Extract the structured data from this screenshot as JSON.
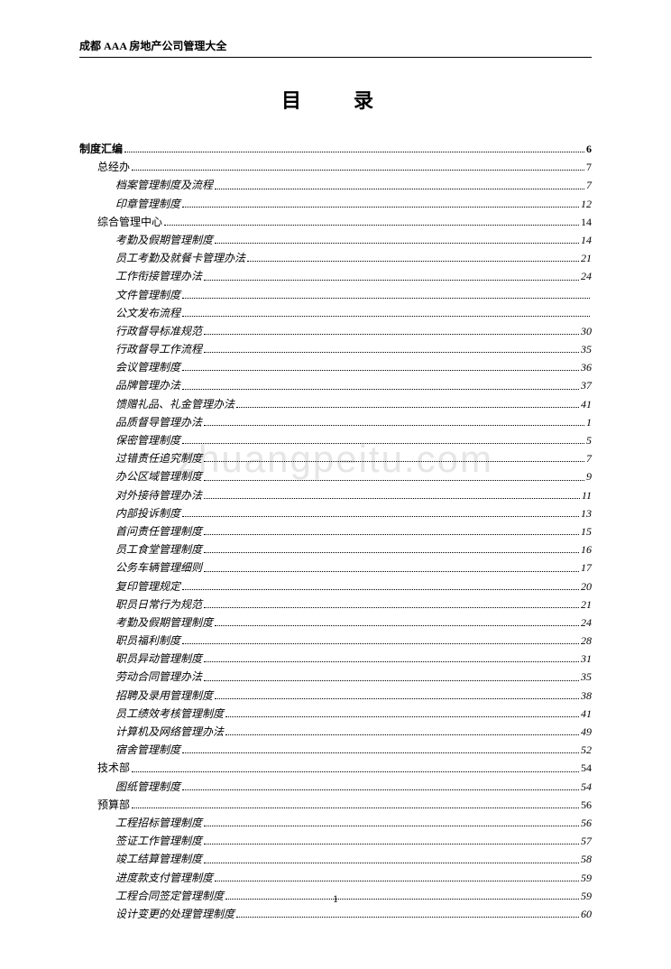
{
  "header": "成都 AAA 房地产公司管理大全",
  "title": "目　录",
  "watermark": "zhuangpeitu.com",
  "pageNumber": "1",
  "toc": [
    {
      "level": 0,
      "label": "制度汇编",
      "page": "6"
    },
    {
      "level": 1,
      "label": "总经办",
      "page": "7"
    },
    {
      "level": 2,
      "label": "档案管理制度及流程",
      "page": "7"
    },
    {
      "level": 2,
      "label": "印章管理制度",
      "page": "12"
    },
    {
      "level": 1,
      "label": "综合管理中心",
      "page": "14"
    },
    {
      "level": 2,
      "label": "考勤及假期管理制度",
      "page": "14"
    },
    {
      "level": 2,
      "label": "员工考勤及就餐卡管理办法",
      "page": "21"
    },
    {
      "level": 2,
      "label": "工作衔接管理办法",
      "page": "24"
    },
    {
      "level": 2,
      "label": "文件管理制度",
      "page": ""
    },
    {
      "level": 2,
      "label": "公文发布流程",
      "page": ""
    },
    {
      "level": 2,
      "label": "行政督导标准规范",
      "page": "30"
    },
    {
      "level": 2,
      "label": "行政督导工作流程",
      "page": "35"
    },
    {
      "level": 2,
      "label": "会议管理制度",
      "page": "36"
    },
    {
      "level": 2,
      "label": "品牌管理办法",
      "page": "37"
    },
    {
      "level": 2,
      "label": "馈赠礼品、礼金管理办法",
      "page": "41"
    },
    {
      "level": 2,
      "label": "品质督导管理办法",
      "page": "1"
    },
    {
      "level": 2,
      "label": "保密管理制度",
      "page": "5"
    },
    {
      "level": 2,
      "label": "过错责任追究制度",
      "page": "7"
    },
    {
      "level": 2,
      "label": "办公区域管理制度",
      "page": "9"
    },
    {
      "level": 2,
      "label": "对外接待管理办法",
      "page": "11"
    },
    {
      "level": 2,
      "label": "内部投诉制度",
      "page": "13"
    },
    {
      "level": 2,
      "label": "首问责任管理制度",
      "page": "15"
    },
    {
      "level": 2,
      "label": "员工食堂管理制度",
      "page": "16"
    },
    {
      "level": 2,
      "label": "公务车辆管理细则",
      "page": "17"
    },
    {
      "level": 2,
      "label": "复印管理规定",
      "page": "20"
    },
    {
      "level": 2,
      "label": "职员日常行为规范",
      "page": "21"
    },
    {
      "level": 2,
      "label": "考勤及假期管理制度",
      "page": "24"
    },
    {
      "level": 2,
      "label": "职员福利制度",
      "page": "28"
    },
    {
      "level": 2,
      "label": "职员异动管理制度",
      "page": "31"
    },
    {
      "level": 2,
      "label": "劳动合同管理办法",
      "page": "35"
    },
    {
      "level": 2,
      "label": "招聘及录用管理制度",
      "page": "38"
    },
    {
      "level": 2,
      "label": "员工绩效考核管理制度",
      "page": "41"
    },
    {
      "level": 2,
      "label": "计算机及网络管理办法",
      "page": "49"
    },
    {
      "level": 2,
      "label": "宿舍管理制度",
      "page": "52"
    },
    {
      "level": 1,
      "label": "技术部",
      "page": "54"
    },
    {
      "level": 2,
      "label": "图纸管理制度",
      "page": "54"
    },
    {
      "level": 1,
      "label": "预算部",
      "page": "56"
    },
    {
      "level": 2,
      "label": "工程招标管理制度",
      "page": "56"
    },
    {
      "level": 2,
      "label": "签证工作管理制度",
      "page": "57"
    },
    {
      "level": 2,
      "label": "竣工结算管理制度",
      "page": "58"
    },
    {
      "level": 2,
      "label": "进度款支付管理制度",
      "page": "59"
    },
    {
      "level": 2,
      "label": "工程合同签定管理制度",
      "page": "59"
    },
    {
      "level": 2,
      "label": "设计变更的处理管理制度",
      "page": "60"
    }
  ]
}
